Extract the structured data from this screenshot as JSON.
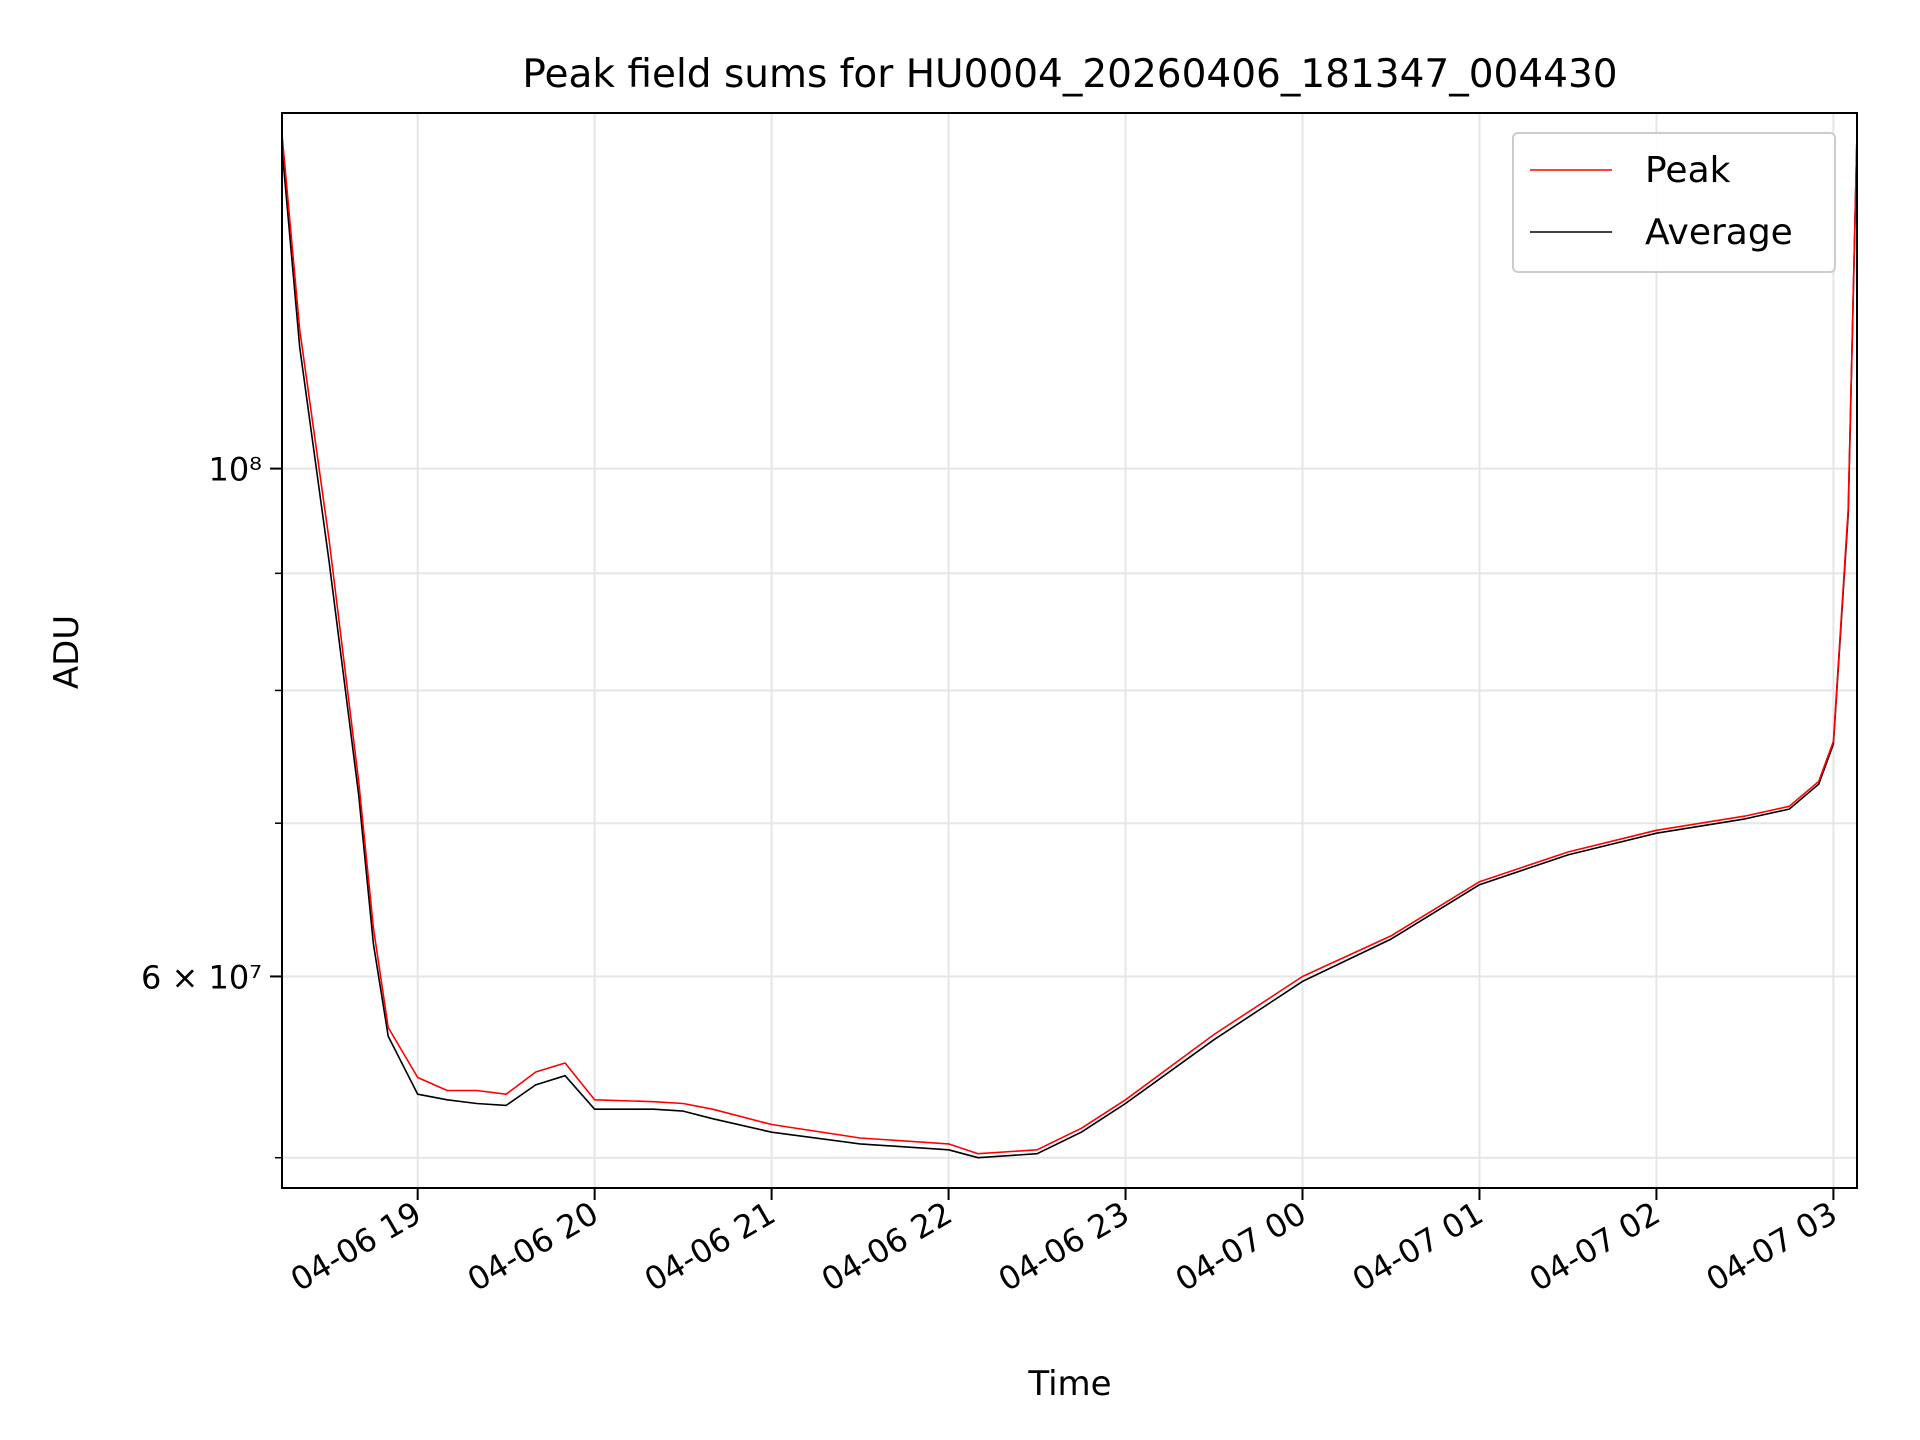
{
  "chart_data": {
    "type": "line",
    "title": "Peak field sums for HU0004_20260406_181347_004430",
    "xlabel": "Time",
    "ylabel": "ADU",
    "yscale": "log",
    "grid": true,
    "legend_position": "top-right",
    "xlim": [
      "04-06 18:14",
      "04-07 03:08"
    ],
    "ylim": [
      48500000,
      143000000
    ],
    "x_ticks": [
      "04-06 19",
      "04-06 20",
      "04-06 21",
      "04-06 22",
      "04-06 23",
      "04-07 00",
      "04-07 01",
      "04-07 02",
      "04-07 03"
    ],
    "y_major_ticks": [
      {
        "value": 60000000,
        "label": "6 × 10⁷"
      },
      {
        "value": 100000000,
        "label": "10⁸"
      }
    ],
    "y_minor_ticks": [
      50000000,
      70000000,
      80000000,
      90000000
    ],
    "colors": {
      "Peak": "#ff0000",
      "Average": "#000000",
      "grid": "#e6e6e6"
    },
    "series": [
      {
        "name": "Peak",
        "x": [
          "04-06 18:14",
          "04-06 18:20",
          "04-06 18:30",
          "04-06 18:40",
          "04-06 18:45",
          "04-06 18:50",
          "04-06 19:00",
          "04-06 19:10",
          "04-06 19:20",
          "04-06 19:30",
          "04-06 19:40",
          "04-06 19:50",
          "04-06 20:00",
          "04-06 20:20",
          "04-06 20:30",
          "04-06 20:40",
          "04-06 21:00",
          "04-06 21:30",
          "04-06 22:00",
          "04-06 22:10",
          "04-06 22:30",
          "04-06 22:45",
          "04-06 23:00",
          "04-06 23:30",
          "04-07 00:00",
          "04-07 00:30",
          "04-07 01:00",
          "04-07 01:30",
          "04-07 02:00",
          "04-07 02:30",
          "04-07 02:45",
          "04-07 02:55",
          "04-07 03:00",
          "04-07 03:05",
          "04-07 03:08"
        ],
        "y": [
          140000000,
          115000000,
          93000000,
          73000000,
          63000000,
          57000000,
          54200000,
          53500000,
          53500000,
          53300000,
          54500000,
          55000000,
          53000000,
          52900000,
          52800000,
          52500000,
          51700000,
          51000000,
          50700000,
          50200000,
          50400000,
          51500000,
          53000000,
          56600000,
          60000000,
          62500000,
          66000000,
          68000000,
          69500000,
          70500000,
          71200000,
          73000000,
          76000000,
          96000000,
          140000000
        ]
      },
      {
        "name": "Average",
        "x": [
          "04-06 18:14",
          "04-06 18:20",
          "04-06 18:30",
          "04-06 18:40",
          "04-06 18:45",
          "04-06 18:50",
          "04-06 19:00",
          "04-06 19:10",
          "04-06 19:20",
          "04-06 19:30",
          "04-06 19:40",
          "04-06 19:50",
          "04-06 20:00",
          "04-06 20:20",
          "04-06 20:30",
          "04-06 20:40",
          "04-06 21:00",
          "04-06 21:30",
          "04-06 22:00",
          "04-06 22:10",
          "04-06 22:30",
          "04-06 22:45",
          "04-06 23:00",
          "04-06 23:30",
          "04-07 00:00",
          "04-07 00:30",
          "04-07 01:00",
          "04-07 01:30",
          "04-07 02:00",
          "04-07 02:30",
          "04-07 02:45",
          "04-07 02:55",
          "04-07 03:00",
          "04-07 03:05",
          "04-07 03:08"
        ],
        "y": [
          138000000,
          113000000,
          91000000,
          72000000,
          62000000,
          56500000,
          53300000,
          53000000,
          52800000,
          52700000,
          53800000,
          54300000,
          52500000,
          52500000,
          52400000,
          52000000,
          51300000,
          50700000,
          50400000,
          50000000,
          50200000,
          51300000,
          52800000,
          56300000,
          59700000,
          62300000,
          65800000,
          67800000,
          69300000,
          70300000,
          71000000,
          72800000,
          75800000,
          95500000,
          140000000
        ]
      }
    ]
  }
}
